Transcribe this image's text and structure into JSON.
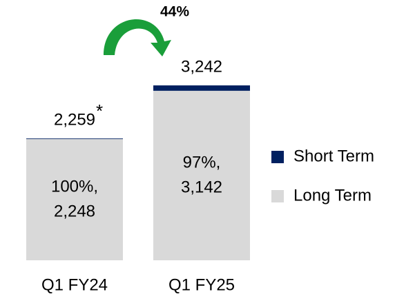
{
  "chart_data": {
    "type": "stacked_bar",
    "categories": [
      "Q1 FY24",
      "Q1 FY25"
    ],
    "series": [
      {
        "name": "Long Term",
        "color": "#d9d9d9",
        "values": [
          2248,
          3142
        ],
        "value_labels": [
          "2,248",
          "3,142"
        ]
      },
      {
        "name": "Short Term",
        "color": "#002060",
        "values": [
          11,
          100
        ]
      }
    ],
    "shares": [
      100,
      97
    ],
    "share_labels": [
      "100%,",
      "97%,"
    ],
    "totals": [
      2259,
      3242
    ],
    "total_labels": [
      "2,259",
      "3,242"
    ],
    "footnote_mark": "*",
    "growth_label": "44%",
    "growth_color": "#1a9e3a",
    "legend": "right"
  }
}
